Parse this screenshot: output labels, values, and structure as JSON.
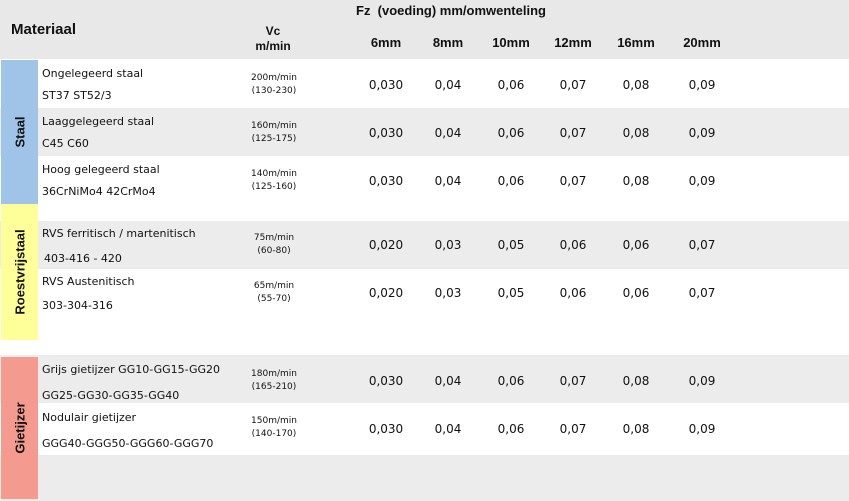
{
  "header": {
    "materiaal": "Materiaal",
    "vc_label": "Vc",
    "vc_unit": "m/min",
    "fz_title": "Fz  (voeding) mm/omwenteling",
    "sizes": [
      "6mm",
      "8mm",
      "10mm",
      "12mm",
      "16mm",
      "20mm"
    ]
  },
  "groups": {
    "staal": {
      "label": "Staal",
      "color": "#9fc4e8"
    },
    "roestvrijstaal": {
      "label": "Roestvrijstaal",
      "color": "#ffff99"
    },
    "gietijzer": {
      "label": "Gietijzer",
      "color": "#f49a8e"
    }
  },
  "rows": [
    {
      "material": "Ongelegeerd staal",
      "grades": "ST37 ST52/3",
      "vc": "200m/min",
      "vc_range": "(130-230)",
      "values": [
        "0,030",
        "0,04",
        "0,06",
        "0,07",
        "0,08",
        "0,09"
      ]
    },
    {
      "material": "Laaggelegeerd staal",
      "grades": "C45 C60",
      "vc": "160m/min",
      "vc_range": "(125-175)",
      "values": [
        "0,030",
        "0,04",
        "0,06",
        "0,07",
        "0,08",
        "0,09"
      ]
    },
    {
      "material": "Hoog gelegeerd staal",
      "grades": "36CrNiMo4 42CrMo4",
      "vc": "140m/min",
      "vc_range": "(125-160)",
      "values": [
        "0,030",
        "0,04",
        "0,06",
        "0,07",
        "0,08",
        "0,09"
      ]
    },
    {
      "material": "RVS ferritisch / martenitisch",
      "grades": "403-416 - 420",
      "vc": "75m/min",
      "vc_range": "(60-80)",
      "values": [
        "0,020",
        "0,03",
        "0,05",
        "0,06",
        "0,06",
        "0,07"
      ]
    },
    {
      "material": "RVS Austenitisch",
      "grades": "303-304-316",
      "vc": "65m/min",
      "vc_range": "(55-70)",
      "values": [
        "0,020",
        "0,03",
        "0,05",
        "0,06",
        "0,06",
        "0,07"
      ]
    },
    {
      "material": "Grijs gietijzer GG10-GG15-GG20",
      "grades": "GG25-GG30-GG35-GG40",
      "vc": "180m/min",
      "vc_range": "(165-210)",
      "values": [
        "0,030",
        "0,04",
        "0,06",
        "0,07",
        "0,08",
        "0,09"
      ]
    },
    {
      "material": "Nodulair gietijzer",
      "grades": "GGG40-GGG50-GGG60-GGG70",
      "vc": "150m/min",
      "vc_range": "(140-170)",
      "values": [
        "0,030",
        "0,04",
        "0,06",
        "0,07",
        "0,08",
        "0,09"
      ]
    }
  ]
}
